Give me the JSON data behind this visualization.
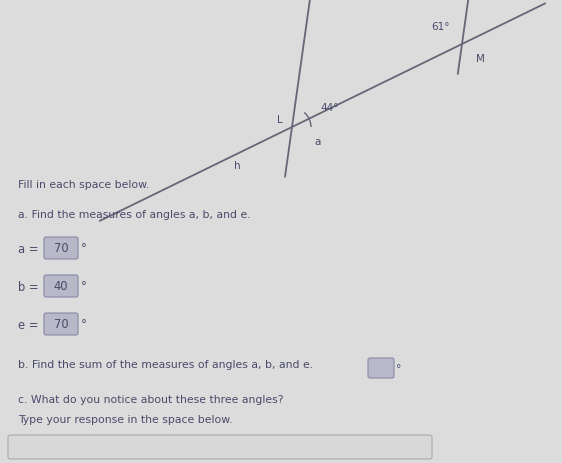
{
  "bg_color": "#dcdcdc",
  "title_text": "Fill in each space below.",
  "section_a_header": "a. Find the measures of angles a, b, and e.",
  "section_b_header": "b. Find the sum of the measures of angles a, b, and e.",
  "section_c_header": "c. What do you notice about these three angles?",
  "section_c_sub": "Type your response in the space below.",
  "a_value": "70",
  "b_value": "40",
  "e_value": "70",
  "angle_44": "44°",
  "angle_61": "61°",
  "label_L": "L",
  "label_M": "M",
  "label_a": "a",
  "label_h": "h",
  "box_bg": "#b8b8c8",
  "box_border": "#8888aa",
  "text_color": "#4a4a6a",
  "line_color": "#666677",
  "input_box_bg": "#d8d8d8",
  "input_box_border": "#aaaaaa"
}
